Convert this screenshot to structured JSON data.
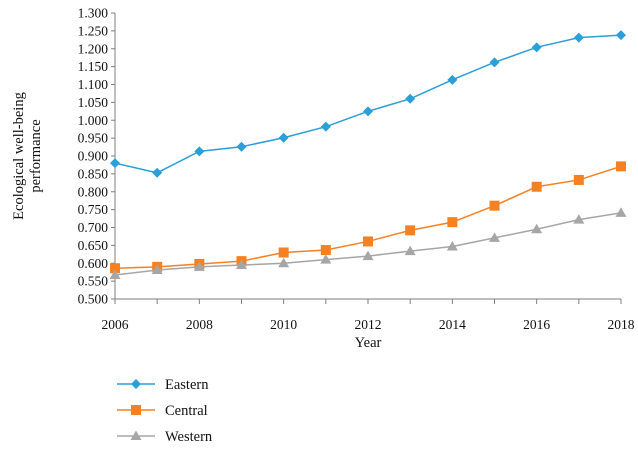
{
  "chart_data": {
    "type": "line",
    "x": [
      2006,
      2007,
      2008,
      2009,
      2010,
      2011,
      2012,
      2013,
      2014,
      2015,
      2016,
      2017,
      2018
    ],
    "x_ticks": [
      "2006",
      "2008",
      "2010",
      "2012",
      "2014",
      "2016",
      "2018"
    ],
    "y_ticks": [
      "0.500",
      "0.550",
      "0.600",
      "0.650",
      "0.700",
      "0.750",
      "0.800",
      "0.850",
      "0.900",
      "0.950",
      "1.000",
      "1.050",
      "1.100",
      "1.150",
      "1.200",
      "1.250",
      "1.300"
    ],
    "ylim": [
      0.5,
      1.3
    ],
    "xlim": [
      2006,
      2018
    ],
    "xlabel": "Year",
    "ylabel_lines": [
      "Ecological well-being",
      "performance"
    ],
    "grid": false,
    "legend_position": "bottom",
    "series": [
      {
        "name": "Eastern",
        "color": "#2a9fd8",
        "marker": "diamond",
        "values": [
          0.88,
          0.853,
          0.913,
          0.926,
          0.951,
          0.982,
          1.025,
          1.06,
          1.113,
          1.162,
          1.204,
          1.231,
          1.238
        ]
      },
      {
        "name": "Central",
        "color": "#f58123",
        "marker": "square",
        "values": [
          0.586,
          0.59,
          0.598,
          0.606,
          0.63,
          0.637,
          0.661,
          0.692,
          0.715,
          0.761,
          0.814,
          0.833,
          0.871
        ]
      },
      {
        "name": "Western",
        "color": "#a6a6a6",
        "marker": "triangle",
        "values": [
          0.567,
          0.581,
          0.59,
          0.595,
          0.6,
          0.61,
          0.62,
          0.634,
          0.647,
          0.671,
          0.695,
          0.722,
          0.741
        ]
      }
    ]
  }
}
